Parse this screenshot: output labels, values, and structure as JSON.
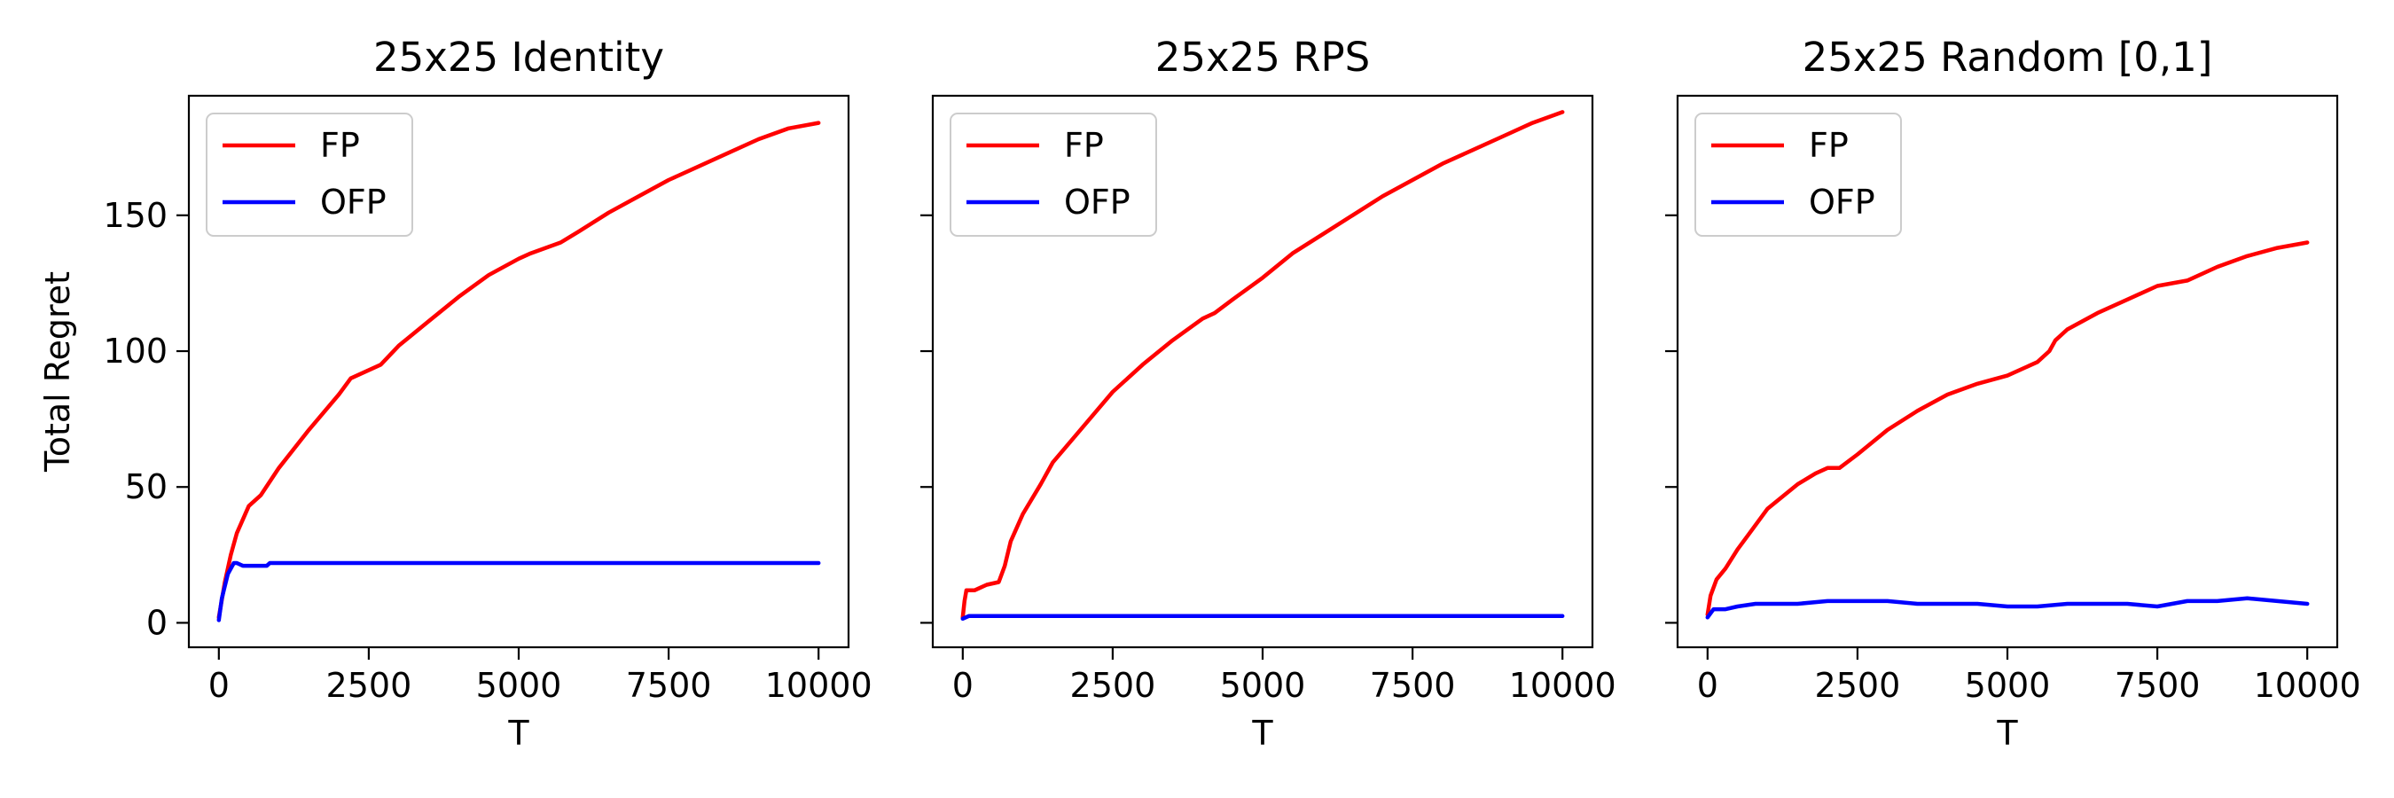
{
  "chart_data": [
    {
      "type": "line",
      "title": "25x25 Identity",
      "xlabel": "T",
      "ylabel": "Total Regret",
      "xlim": [
        -500,
        10500
      ],
      "ylim": [
        -9,
        194
      ],
      "xticks": [
        0,
        2500,
        5000,
        7500,
        10000
      ],
      "xtick_labels": [
        "0",
        "2500",
        "5000",
        "7500",
        "10000"
      ],
      "yticks": [
        0,
        50,
        100,
        150
      ],
      "ytick_labels": [
        "0",
        "50",
        "100",
        "150"
      ],
      "grid": false,
      "legend": "top-left",
      "series": [
        {
          "name": "FP",
          "color": "#ff0000",
          "x": [
            0,
            100,
            200,
            300,
            500,
            700,
            1000,
            1500,
            2000,
            2200,
            2700,
            3000,
            3500,
            4000,
            4500,
            5000,
            5200,
            5700,
            6000,
            6500,
            7000,
            7500,
            8000,
            8500,
            9000,
            9500,
            10000
          ],
          "y": [
            2,
            15,
            25,
            33,
            43,
            47,
            57,
            71,
            84,
            90,
            95,
            102,
            111,
            120,
            128,
            134,
            136,
            140,
            144,
            151,
            157,
            163,
            168,
            173,
            178,
            182,
            184
          ]
        },
        {
          "name": "OFP",
          "color": "#0000ff",
          "x": [
            0,
            50,
            150,
            250,
            300,
            400,
            600,
            800,
            850,
            1000,
            2000,
            3000,
            4000,
            5000,
            6000,
            7000,
            8000,
            9000,
            10000
          ],
          "y": [
            1,
            9,
            18,
            22,
            22,
            21,
            21,
            21,
            22,
            22,
            22,
            22,
            22,
            22,
            22,
            22,
            22,
            22,
            22
          ]
        }
      ]
    },
    {
      "type": "line",
      "title": "25x25 RPS",
      "xlabel": "T",
      "xlim": [
        -500,
        10500
      ],
      "ylim": [
        -9,
        194
      ],
      "xticks": [
        0,
        2500,
        5000,
        7500,
        10000
      ],
      "xtick_labels": [
        "0",
        "2500",
        "5000",
        "7500",
        "10000"
      ],
      "yticks": [
        0,
        50,
        100,
        150
      ],
      "grid": false,
      "legend": "top-left",
      "series": [
        {
          "name": "FP",
          "color": "#ff0000",
          "x": [
            0,
            30,
            60,
            200,
            300,
            400,
            600,
            700,
            800,
            1000,
            1300,
            1500,
            2000,
            2500,
            3000,
            3500,
            4000,
            4200,
            4500,
            5000,
            5500,
            6000,
            6500,
            7000,
            7500,
            8000,
            8500,
            9000,
            9500,
            10000
          ],
          "y": [
            2,
            8,
            12,
            12,
            13,
            14,
            15,
            21,
            30,
            40,
            51,
            59,
            72,
            85,
            95,
            104,
            112,
            114,
            119,
            127,
            136,
            143,
            150,
            157,
            163,
            169,
            174,
            179,
            184,
            188
          ]
        },
        {
          "name": "OFP",
          "color": "#0000ff",
          "x": [
            0,
            100,
            500,
            1000,
            2000,
            3000,
            4000,
            5000,
            6000,
            7000,
            8000,
            9000,
            10000
          ],
          "y": [
            1.5,
            2.5,
            2.5,
            2.5,
            2.5,
            2.5,
            2.5,
            2.5,
            2.5,
            2.5,
            2.5,
            2.5,
            2.5
          ]
        }
      ]
    },
    {
      "type": "line",
      "title": "25x25 Random [0,1]",
      "xlabel": "T",
      "xlim": [
        -500,
        10500
      ],
      "ylim": [
        -9,
        194
      ],
      "xticks": [
        0,
        2500,
        5000,
        7500,
        10000
      ],
      "xtick_labels": [
        "0",
        "2500",
        "5000",
        "7500",
        "10000"
      ],
      "yticks": [
        0,
        50,
        100,
        150
      ],
      "grid": false,
      "legend": "top-left",
      "series": [
        {
          "name": "FP",
          "color": "#ff0000",
          "x": [
            0,
            50,
            150,
            300,
            500,
            700,
            1000,
            1500,
            1800,
            2000,
            2200,
            2500,
            3000,
            3500,
            4000,
            4500,
            5000,
            5500,
            5700,
            5800,
            6000,
            6500,
            7000,
            7500,
            8000,
            8500,
            9000,
            9500,
            10000
          ],
          "y": [
            3,
            10,
            16,
            20,
            27,
            33,
            42,
            51,
            55,
            57,
            57,
            62,
            71,
            78,
            84,
            88,
            91,
            96,
            100,
            104,
            108,
            114,
            119,
            124,
            126,
            131,
            135,
            138,
            140
          ]
        },
        {
          "name": "OFP",
          "color": "#0000ff",
          "x": [
            0,
            100,
            300,
            500,
            800,
            1200,
            1500,
            2000,
            2500,
            3000,
            3500,
            4000,
            4500,
            5000,
            5500,
            6000,
            6500,
            7000,
            7500,
            8000,
            8500,
            9000,
            9500,
            10000
          ],
          "y": [
            2,
            5,
            5,
            6,
            7,
            7,
            7,
            8,
            8,
            8,
            7,
            7,
            7,
            6,
            6,
            7,
            7,
            7,
            6,
            8,
            8,
            9,
            8,
            7
          ]
        }
      ]
    }
  ]
}
